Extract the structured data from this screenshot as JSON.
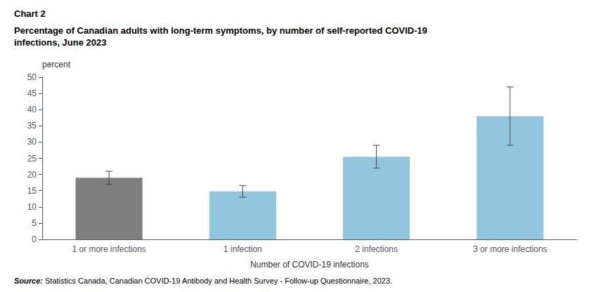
{
  "chart_data": {
    "type": "bar",
    "title": "Chart 2",
    "subtitle": "Percentage of Canadian adults with long-term symptoms, by number of self-reported COVID-19\ninfections, June 2023",
    "x_label": "Number of COVID-19 infections",
    "y_label": "percent",
    "source_label": "Source:",
    "source": "Statistics Canada, Canadian COVID-19 Antibody and Health Survey - Follow-up Questionnaire, 2023.",
    "categories": [
      "1 or more infections",
      "1 infection",
      "2 infections",
      "3 or more infections"
    ],
    "values": [
      19.0,
      14.8,
      25.5,
      38.0
    ],
    "error_low": [
      2.0,
      1.8,
      3.5,
      9.0
    ],
    "error_high": [
      2.0,
      1.8,
      3.5,
      9.0
    ],
    "colors": [
      "#7f7f7f",
      "#92C5DE",
      "#92C5DE",
      "#92C5DE"
    ],
    "ylim": [
      0,
      50
    ],
    "yticks": [
      0,
      5,
      10,
      15,
      20,
      25,
      30,
      35,
      40,
      45,
      50
    ],
    "grid": false
  }
}
